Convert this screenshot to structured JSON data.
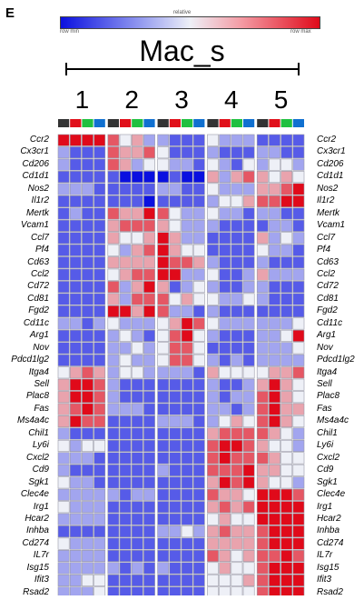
{
  "panel": {
    "letter": "E"
  },
  "colorbar": {
    "center_label": "relative",
    "min_label": "row min",
    "max_label": "row max",
    "low_color": "#0a10e0",
    "mid_color": "#eef0f7",
    "high_color": "#e00a1a"
  },
  "group": {
    "title": "Mac_s"
  },
  "clusters": [
    "1",
    "2",
    "3",
    "4",
    "5"
  ],
  "sample_colors": [
    "#333333",
    "#e0101a",
    "#20c040",
    "#1070d0"
  ],
  "chart_data": {
    "type": "heatmap",
    "title": "Mac_s",
    "color_scale": {
      "min_label": "row min",
      "max_label": "row max",
      "center_label": "relative"
    },
    "columns_per_cluster": 4,
    "clusters": [
      "1",
      "2",
      "3",
      "4",
      "5"
    ],
    "genes": [
      "Ccr2",
      "Cx3cr1",
      "Cd206",
      "Cd1d1",
      "Nos2",
      "Il1r2",
      "Mertk",
      "Vcam1",
      "Ccl7",
      "Pf4",
      "Cd63",
      "Ccl2",
      "Cd72",
      "Cd81",
      "Fgd2",
      "Cd11c",
      "Arg1",
      "Nov",
      "Pdcd1lg2",
      "Itga4",
      "Sell",
      "Plac8",
      "Fas",
      "Ms4a4c",
      "Chil1",
      "Ly6i",
      "Cxcl2",
      "Cd9",
      "Sgk1",
      "Clec4e",
      "Irg1",
      "Hcar2",
      "Inhba",
      "Cd274",
      "IL7r",
      "Isg15",
      "Ifit3",
      "Rsad2"
    ],
    "genes_right": [
      "Ccr2",
      "Cx3cr1",
      "Cd206",
      "Cd1d1",
      "Nos2",
      "Il1r2",
      "Mertk",
      "Vcam1",
      "Ccl7",
      "Pf4",
      "Cd63",
      "Ccl2",
      "Cd72",
      "Cd81",
      "Fgd2",
      "Cd11c",
      "Arg1",
      "Nov",
      "Pdcd1lg2",
      "Itga4",
      "Sell",
      "Plac8",
      "Fas",
      "Ms4a4c",
      "Chil1",
      "Ly6i",
      "Cxcl2",
      "Cd9",
      "Sgk1",
      "Clec4e",
      "Irg1",
      "Hcar2",
      "Inhba",
      "Cd274",
      "IL7r",
      "Isg15",
      "Ifit3",
      "Rsad2"
    ],
    "values": [
      [
        3,
        3,
        3,
        3,
        2,
        0,
        1,
        -1,
        -1,
        -2,
        -2,
        -2,
        0,
        -1,
        -1,
        -1,
        -2,
        -2,
        -2,
        -2
      ],
      [
        -1,
        -2,
        -2,
        -2,
        2,
        1,
        1,
        2,
        0,
        -2,
        -2,
        -2,
        -1,
        -2,
        -2,
        -2,
        -1,
        -1,
        -2,
        -2
      ],
      [
        -1,
        -2,
        -2,
        -2,
        2,
        1,
        -1,
        0,
        0,
        -1,
        -1,
        -2,
        0,
        -1,
        -2,
        0,
        -1,
        0,
        0,
        -1
      ],
      [
        -2,
        -2,
        -2,
        -2,
        -2,
        -3,
        -3,
        -3,
        -3,
        -2,
        -3,
        -3,
        1,
        -1,
        1,
        2,
        1,
        0,
        1,
        0
      ],
      [
        -1,
        -1,
        -1,
        -2,
        -2,
        -2,
        -2,
        -2,
        -1,
        -1,
        -2,
        -2,
        0,
        -1,
        -1,
        -1,
        1,
        1,
        2,
        3
      ],
      [
        -2,
        -2,
        -2,
        -2,
        -2,
        -2,
        -2,
        -3,
        -2,
        -2,
        -2,
        -2,
        -1,
        0,
        0,
        1,
        2,
        2,
        3,
        3
      ],
      [
        -2,
        -1,
        -2,
        -2,
        2,
        1,
        1,
        3,
        2,
        0,
        -1,
        -1,
        0,
        -1,
        -1,
        -2,
        -1,
        -1,
        -2,
        -2
      ],
      [
        -2,
        -2,
        -2,
        -2,
        1,
        2,
        2,
        2,
        1,
        0,
        -1,
        -1,
        -1,
        -2,
        -2,
        -2,
        -2,
        -1,
        -1,
        -2
      ],
      [
        -2,
        -2,
        -2,
        -2,
        1,
        0,
        0,
        1,
        3,
        1,
        -1,
        -1,
        -2,
        -2,
        -2,
        -2,
        1,
        -1,
        0,
        -1
      ],
      [
        -2,
        -2,
        -2,
        -2,
        0,
        -1,
        1,
        2,
        3,
        1,
        0,
        0,
        -2,
        -2,
        -2,
        -2,
        0,
        -1,
        -1,
        -2
      ],
      [
        -2,
        -2,
        -2,
        -2,
        1,
        1,
        1,
        1,
        3,
        2,
        2,
        1,
        -1,
        -2,
        -2,
        -2,
        -1,
        -2,
        -2,
        -2
      ],
      [
        -2,
        -2,
        -2,
        -2,
        0,
        1,
        2,
        2,
        3,
        3,
        -1,
        -1,
        0,
        -2,
        -2,
        -1,
        1,
        -1,
        -1,
        -1
      ],
      [
        -2,
        -2,
        -2,
        -2,
        2,
        -1,
        1,
        3,
        1,
        -2,
        -1,
        0,
        -1,
        -2,
        -2,
        -1,
        -1,
        -2,
        -2,
        -2
      ],
      [
        -2,
        -2,
        -2,
        -2,
        1,
        -1,
        2,
        2,
        2,
        0,
        1,
        0,
        0,
        -1,
        -1,
        0,
        -1,
        -2,
        -2,
        -2
      ],
      [
        -2,
        -2,
        -2,
        -2,
        3,
        3,
        1,
        3,
        2,
        -1,
        -1,
        -2,
        -1,
        -2,
        -2,
        -2,
        -2,
        -2,
        -2,
        -2
      ],
      [
        -1,
        -1,
        -2,
        -1,
        0,
        -1,
        -1,
        -1,
        0,
        1,
        3,
        2,
        0,
        -1,
        -1,
        -1,
        -1,
        -1,
        -1,
        0
      ],
      [
        -2,
        -2,
        -2,
        -2,
        -1,
        0,
        -1,
        -2,
        0,
        2,
        3,
        0,
        -1,
        -2,
        -2,
        -2,
        -1,
        -1,
        0,
        3
      ],
      [
        -2,
        -2,
        -2,
        -2,
        -1,
        -1,
        0,
        -1,
        0,
        2,
        2,
        0,
        -2,
        -2,
        -2,
        -2,
        -1,
        -1,
        -1,
        0
      ],
      [
        -2,
        -2,
        -2,
        -2,
        -1,
        0,
        -1,
        -1,
        0,
        2,
        2,
        0,
        -1,
        -2,
        -1,
        -2,
        -1,
        -1,
        -1,
        -1
      ],
      [
        0,
        1,
        2,
        1,
        -1,
        0,
        0,
        -1,
        -1,
        -1,
        -1,
        -2,
        1,
        0,
        0,
        0,
        0,
        1,
        1,
        2
      ],
      [
        1,
        3,
        3,
        2,
        -1,
        -2,
        -2,
        -2,
        -2,
        -2,
        -2,
        -2,
        -1,
        -2,
        -2,
        -1,
        1,
        3,
        1,
        0
      ],
      [
        1,
        3,
        3,
        2,
        -1,
        -2,
        -2,
        -2,
        -2,
        -2,
        -2,
        -2,
        -1,
        -2,
        -1,
        -1,
        2,
        3,
        1,
        0
      ],
      [
        1,
        2,
        3,
        2,
        -1,
        -1,
        -1,
        -2,
        -2,
        -2,
        -2,
        -2,
        -1,
        -1,
        -2,
        -1,
        2,
        3,
        1,
        1
      ],
      [
        1,
        3,
        2,
        2,
        -2,
        -2,
        -2,
        -2,
        -1,
        -1,
        -1,
        -2,
        -1,
        0,
        1,
        0,
        2,
        3,
        1,
        0
      ],
      [
        -1,
        -2,
        -2,
        -2,
        -2,
        -2,
        -2,
        -2,
        -2,
        -2,
        -2,
        -2,
        1,
        2,
        2,
        2,
        2,
        1,
        0,
        -1
      ],
      [
        0,
        -1,
        0,
        0,
        -2,
        -2,
        -2,
        -2,
        -2,
        -2,
        -2,
        -2,
        2,
        3,
        3,
        2,
        1,
        0,
        0,
        -1
      ],
      [
        -1,
        -1,
        -1,
        -2,
        -2,
        -2,
        -2,
        -2,
        -2,
        -2,
        -2,
        -2,
        2,
        3,
        2,
        2,
        2,
        1,
        0,
        0
      ],
      [
        -1,
        -2,
        -2,
        -2,
        -2,
        -2,
        -2,
        -2,
        -1,
        -2,
        -2,
        -2,
        2,
        2,
        2,
        3,
        1,
        1,
        0,
        0
      ],
      [
        0,
        -1,
        -1,
        -2,
        -2,
        -2,
        -2,
        -2,
        -2,
        -2,
        -2,
        -2,
        1,
        3,
        2,
        3,
        1,
        0,
        0,
        -1
      ],
      [
        -1,
        -1,
        -1,
        -1,
        -1,
        -2,
        -1,
        -1,
        -2,
        -2,
        -2,
        -2,
        2,
        1,
        1,
        0,
        3,
        3,
        3,
        2
      ],
      [
        0,
        -1,
        -1,
        -1,
        -2,
        -2,
        -2,
        -2,
        -2,
        -2,
        -2,
        -2,
        1,
        2,
        1,
        2,
        3,
        3,
        3,
        3
      ],
      [
        -1,
        -1,
        -1,
        -1,
        -2,
        -2,
        -2,
        -2,
        -2,
        -2,
        -2,
        -2,
        0,
        1,
        0,
        0,
        3,
        3,
        3,
        3
      ],
      [
        -2,
        -2,
        -2,
        -2,
        -2,
        -2,
        -2,
        -2,
        -1,
        -1,
        0,
        -1,
        1,
        2,
        1,
        1,
        2,
        3,
        3,
        3
      ],
      [
        0,
        -1,
        -1,
        -1,
        -2,
        -2,
        -2,
        -2,
        -2,
        -2,
        -2,
        -2,
        1,
        1,
        1,
        1,
        2,
        3,
        3,
        3
      ],
      [
        -1,
        -1,
        -1,
        -1,
        -2,
        -2,
        -2,
        -2,
        -2,
        -2,
        -2,
        -2,
        2,
        1,
        0,
        1,
        2,
        2,
        3,
        2
      ],
      [
        -1,
        -1,
        -1,
        -1,
        -1,
        -2,
        -1,
        -2,
        -1,
        -2,
        -2,
        -2,
        0,
        1,
        0,
        0,
        2,
        3,
        3,
        3
      ],
      [
        -1,
        -1,
        0,
        0,
        -2,
        -2,
        -2,
        -2,
        -2,
        -2,
        -2,
        -2,
        0,
        0,
        0,
        1,
        2,
        3,
        3,
        3
      ],
      [
        -1,
        -1,
        -1,
        0,
        -2,
        -2,
        -2,
        -2,
        -2,
        -2,
        -2,
        -2,
        0,
        0,
        0,
        0,
        2,
        3,
        3,
        3
      ]
    ]
  }
}
